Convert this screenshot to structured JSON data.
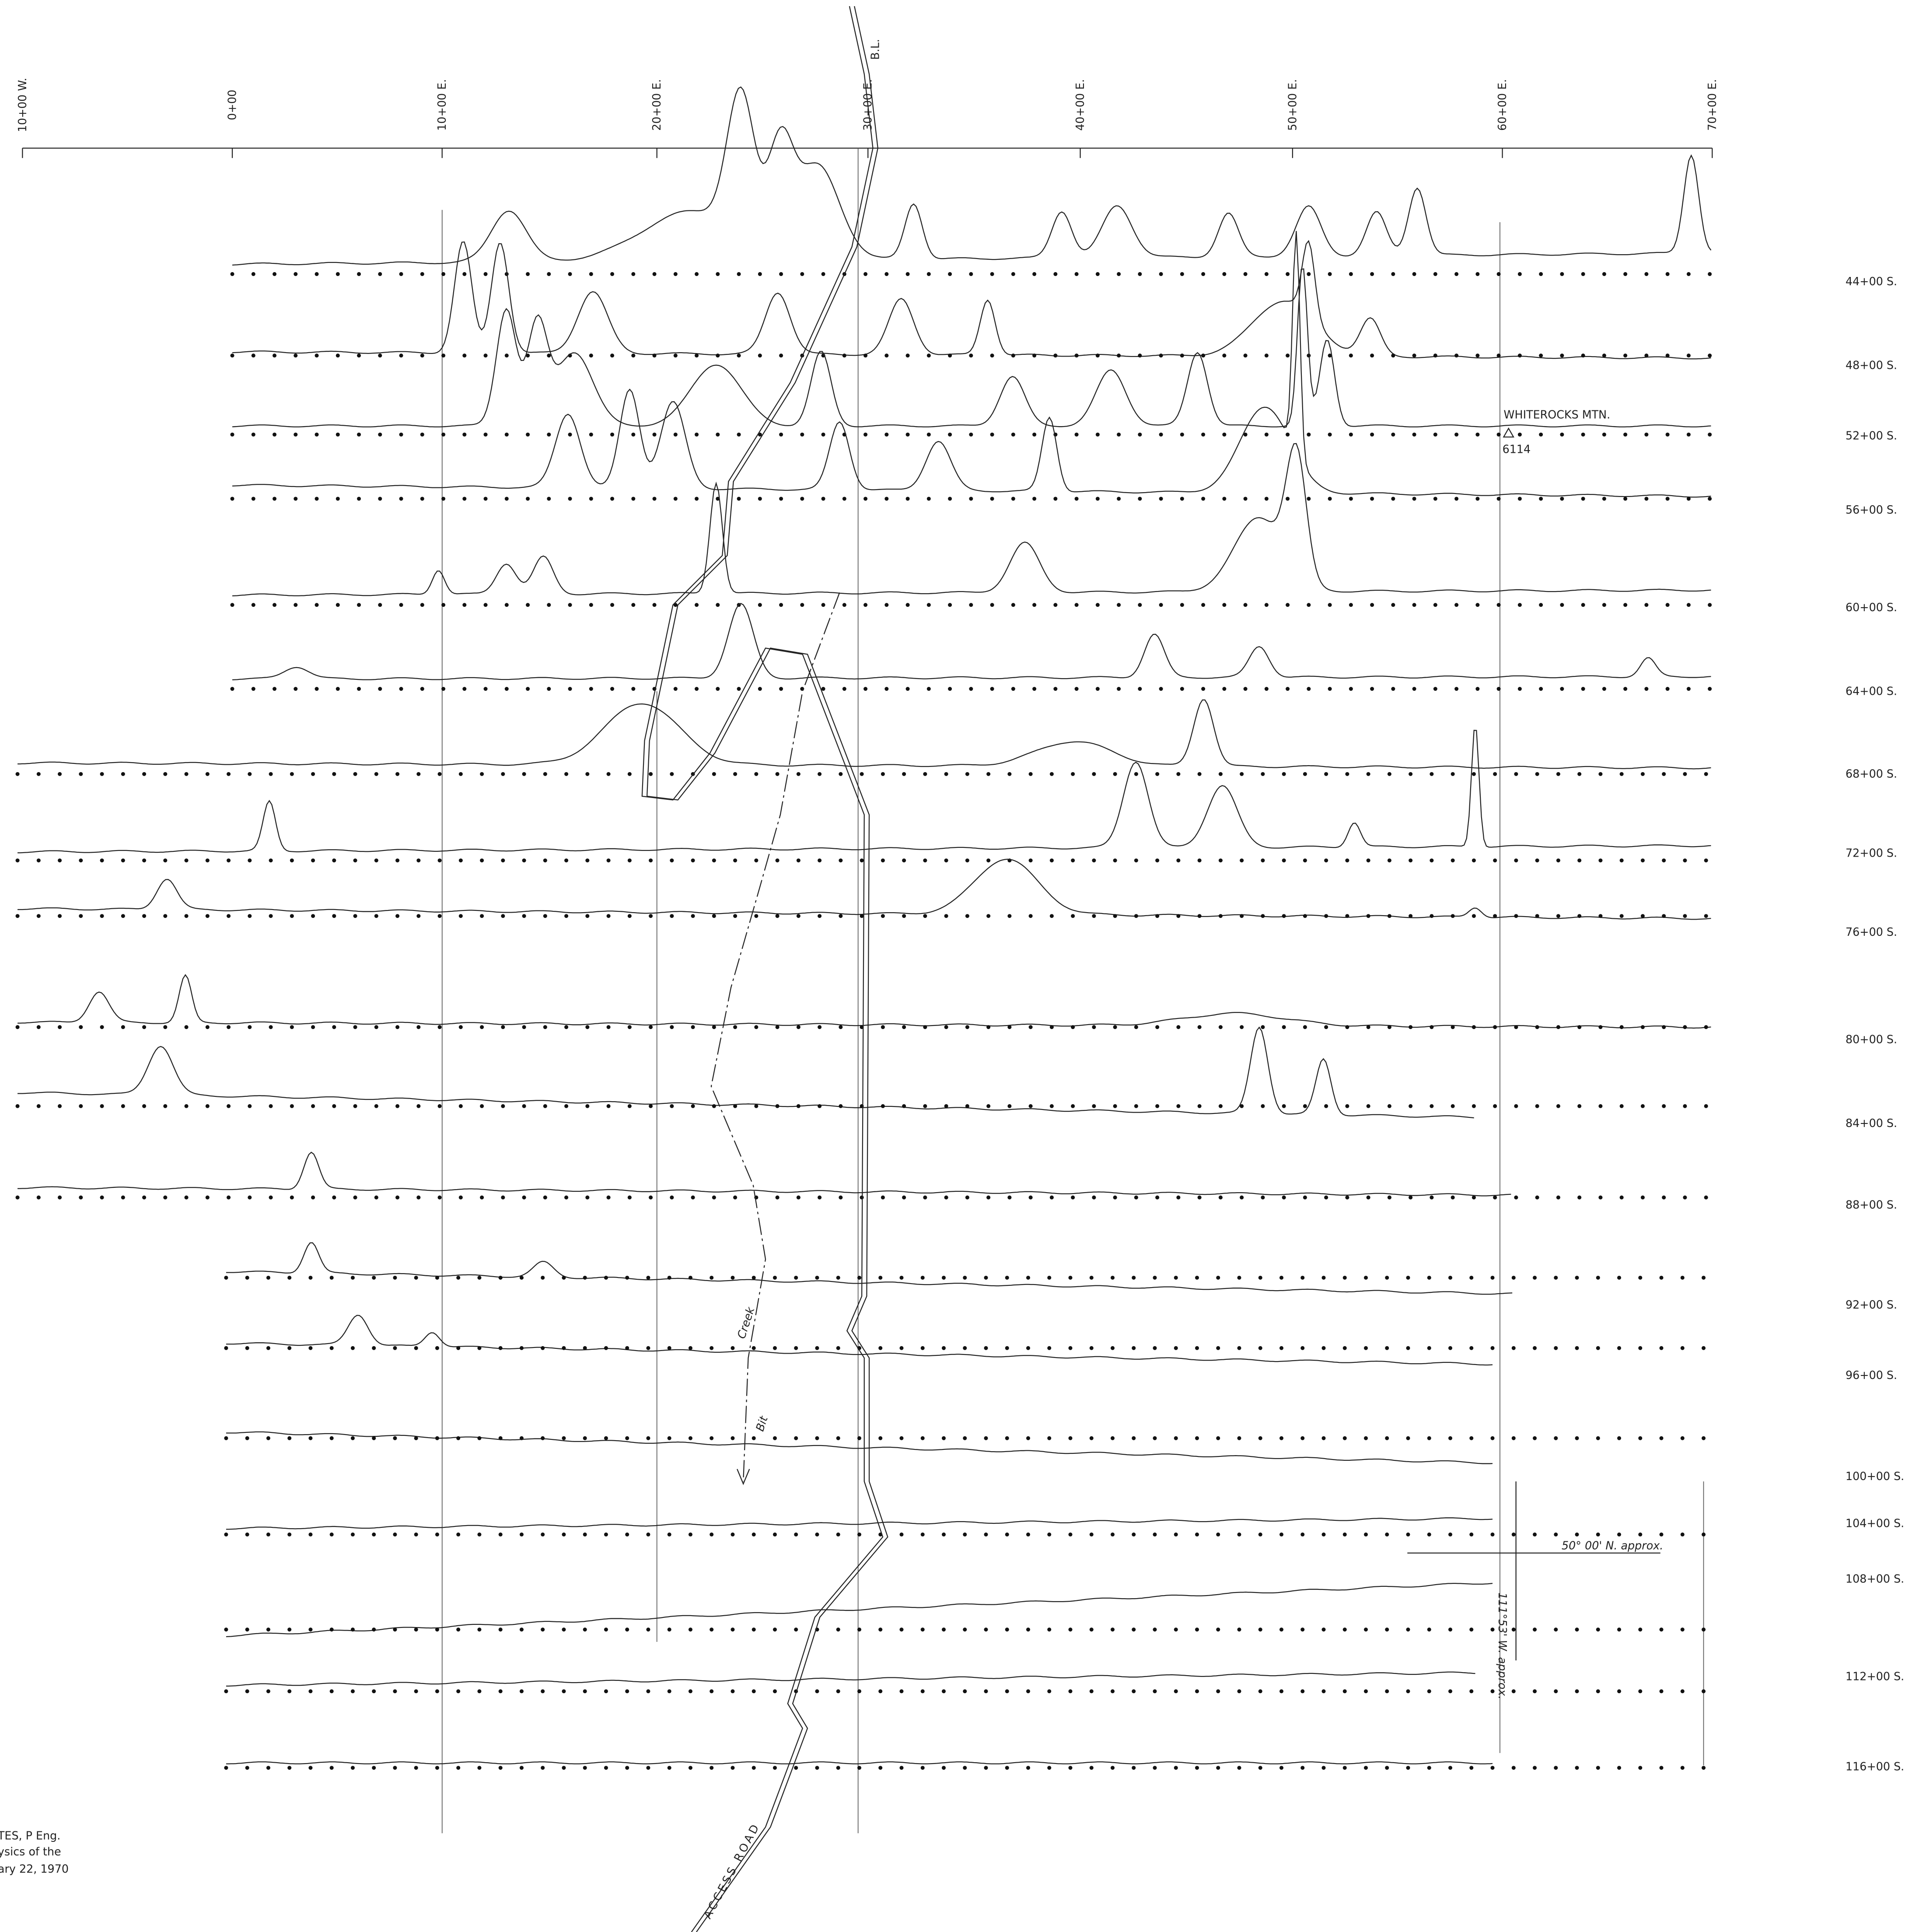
{
  "top_labels": [
    "10+00 W.",
    "0+00",
    "10+00 E.",
    "20+00 E.",
    "30+00 E.",
    "40+00 E.",
    "50+00 E.",
    "60+00 E.",
    "70+00 E."
  ],
  "baseline_label": "B.L.",
  "line_labels": [
    "44+00 S.",
    "48+00 S.",
    "52+00 S.",
    "56+00 S.",
    "60+00 S.",
    "64+00 S.",
    "68+00 S.",
    "72+00 S.",
    "76+00 S.",
    "80+00 S.",
    "84+00 S.",
    "88+00 S.",
    "92+00 S.",
    "96+00 S.",
    "100+00 S.",
    "104+00 S.",
    "108+00 S.",
    "112+00 S.",
    "116+00 S."
  ],
  "annotations": {
    "mountain": "WHITEROCKS MTN.",
    "elevation": "6114",
    "creek_1": "Creek",
    "creek_2": "Bit",
    "road": "ACCESS ROAD",
    "latitude": "50° 00' N. approx.",
    "longitude": "111°53' W. approx."
  },
  "credit": [
    "TES, P Eng.",
    "ysics of the",
    "ary 22, 1970"
  ]
}
